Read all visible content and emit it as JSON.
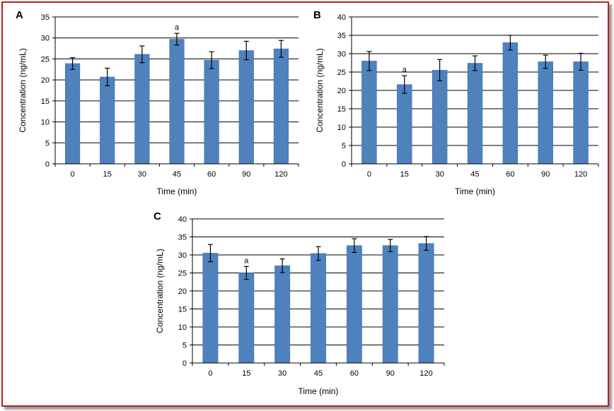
{
  "figure": {
    "bar_color": "#4f81bd",
    "bar_edge_color": "#3a6aa3",
    "grid_color": "#000000",
    "frame_color": "#b32424"
  },
  "chart_data": [
    {
      "panel": "A",
      "type": "bar",
      "categories": [
        "0",
        "15",
        "30",
        "45",
        "60",
        "90",
        "120"
      ],
      "values": [
        23.9,
        20.7,
        26.1,
        29.7,
        24.7,
        27.0,
        27.4
      ],
      "errors": [
        1.4,
        2.1,
        2.0,
        1.4,
        2.0,
        2.2,
        2.0
      ],
      "annotations": [
        {
          "category": "45",
          "text": "a"
        }
      ],
      "xlabel": "Time (min)",
      "ylabel": "Concentration (ng/mL)",
      "ylim": [
        0,
        35
      ],
      "yticks": [
        0,
        5,
        10,
        15,
        20,
        25,
        30,
        35
      ],
      "grid": true
    },
    {
      "panel": "B",
      "type": "bar",
      "categories": [
        "0",
        "15",
        "30",
        "45",
        "60",
        "90",
        "120"
      ],
      "values": [
        28.0,
        21.6,
        25.5,
        27.4,
        33.0,
        27.8,
        27.8
      ],
      "errors": [
        2.6,
        2.4,
        2.9,
        2.0,
        2.0,
        1.8,
        2.3
      ],
      "annotations": [
        {
          "category": "15",
          "text": "a"
        }
      ],
      "xlabel": "Time (min)",
      "ylabel": "Concentration (ng/mL)",
      "ylim": [
        0,
        40
      ],
      "yticks": [
        0,
        5,
        10,
        15,
        20,
        25,
        30,
        35,
        40
      ],
      "grid": true
    },
    {
      "panel": "C",
      "type": "bar",
      "categories": [
        "0",
        "15",
        "30",
        "45",
        "60",
        "90",
        "120"
      ],
      "values": [
        30.5,
        25.0,
        27.0,
        30.4,
        32.6,
        32.6,
        33.2
      ],
      "errors": [
        2.4,
        1.8,
        1.9,
        1.9,
        1.9,
        1.7,
        1.9
      ],
      "annotations": [
        {
          "category": "15",
          "text": "a"
        }
      ],
      "xlabel": "Time (min)",
      "ylabel": "Concentration (ng/mL)",
      "ylim": [
        0,
        40
      ],
      "yticks": [
        0,
        5,
        10,
        15,
        20,
        25,
        30,
        35,
        40
      ],
      "grid": true
    }
  ]
}
